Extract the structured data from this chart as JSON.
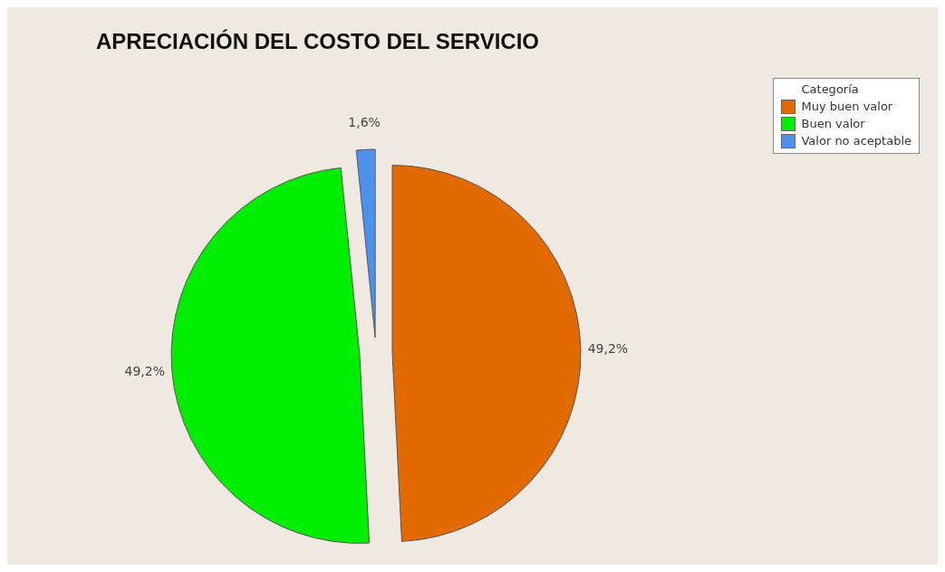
{
  "chart_data": {
    "type": "pie",
    "title": "APRECIACIÓN DEL COSTO DEL SERVICIO",
    "legend_title": "Categoría",
    "legend": "top right",
    "categories": [
      "Muy buen valor",
      "Buen valor",
      "Valor no aceptable"
    ],
    "values": [
      49.2,
      49.2,
      1.6
    ],
    "colors": [
      "#e36a00",
      "#00ee00",
      "#4b92ee"
    ],
    "value_labels": [
      "49,2%",
      "49,2%",
      "1,6%"
    ]
  }
}
